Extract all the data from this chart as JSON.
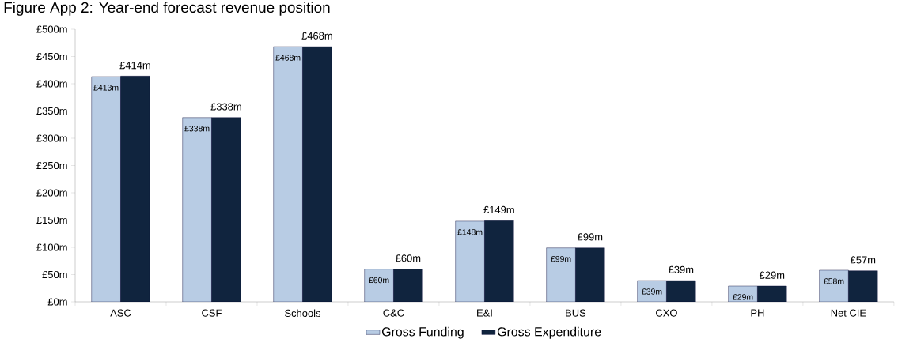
{
  "chart_data": {
    "type": "bar",
    "title": "Figure App 2: Year-end forecast revenue position",
    "categories": [
      "ASC",
      "CSF",
      "Schools",
      "C&C",
      "E&I",
      "BUS",
      "CXO",
      "PH",
      "Net CIE"
    ],
    "series": [
      {
        "name": "Gross Funding",
        "color": "#b8cce4",
        "values": [
          413,
          338,
          468,
          60,
          148,
          99,
          39,
          29,
          58
        ],
        "value_labels": [
          "£413m",
          "£338m",
          "£468m",
          "£60m",
          "£148m",
          "£99m",
          "£39m",
          "£29m",
          "£58m"
        ]
      },
      {
        "name": "Gross Expenditure",
        "color": "#10243e",
        "values": [
          414,
          338,
          468,
          60,
          149,
          99,
          39,
          29,
          57
        ],
        "value_labels": [
          "£414m",
          "£338m",
          "£468m",
          "£60m",
          "£149m",
          "£99m",
          "£39m",
          "£29m",
          "£57m"
        ]
      }
    ],
    "ylim": [
      0,
      500
    ],
    "yticks": [
      {
        "value": 0,
        "label": "£0m"
      },
      {
        "value": 50,
        "label": "£50m"
      },
      {
        "value": 100,
        "label": "£100m"
      },
      {
        "value": 150,
        "label": "£150m"
      },
      {
        "value": 200,
        "label": "£200m"
      },
      {
        "value": 250,
        "label": "£250m"
      },
      {
        "value": 300,
        "label": "£300m"
      },
      {
        "value": 350,
        "label": "£350m"
      },
      {
        "value": 400,
        "label": "£400m"
      },
      {
        "value": 450,
        "label": "£450m"
      },
      {
        "value": 500,
        "label": "£500m"
      }
    ],
    "grid": false,
    "legend": "bottom"
  }
}
